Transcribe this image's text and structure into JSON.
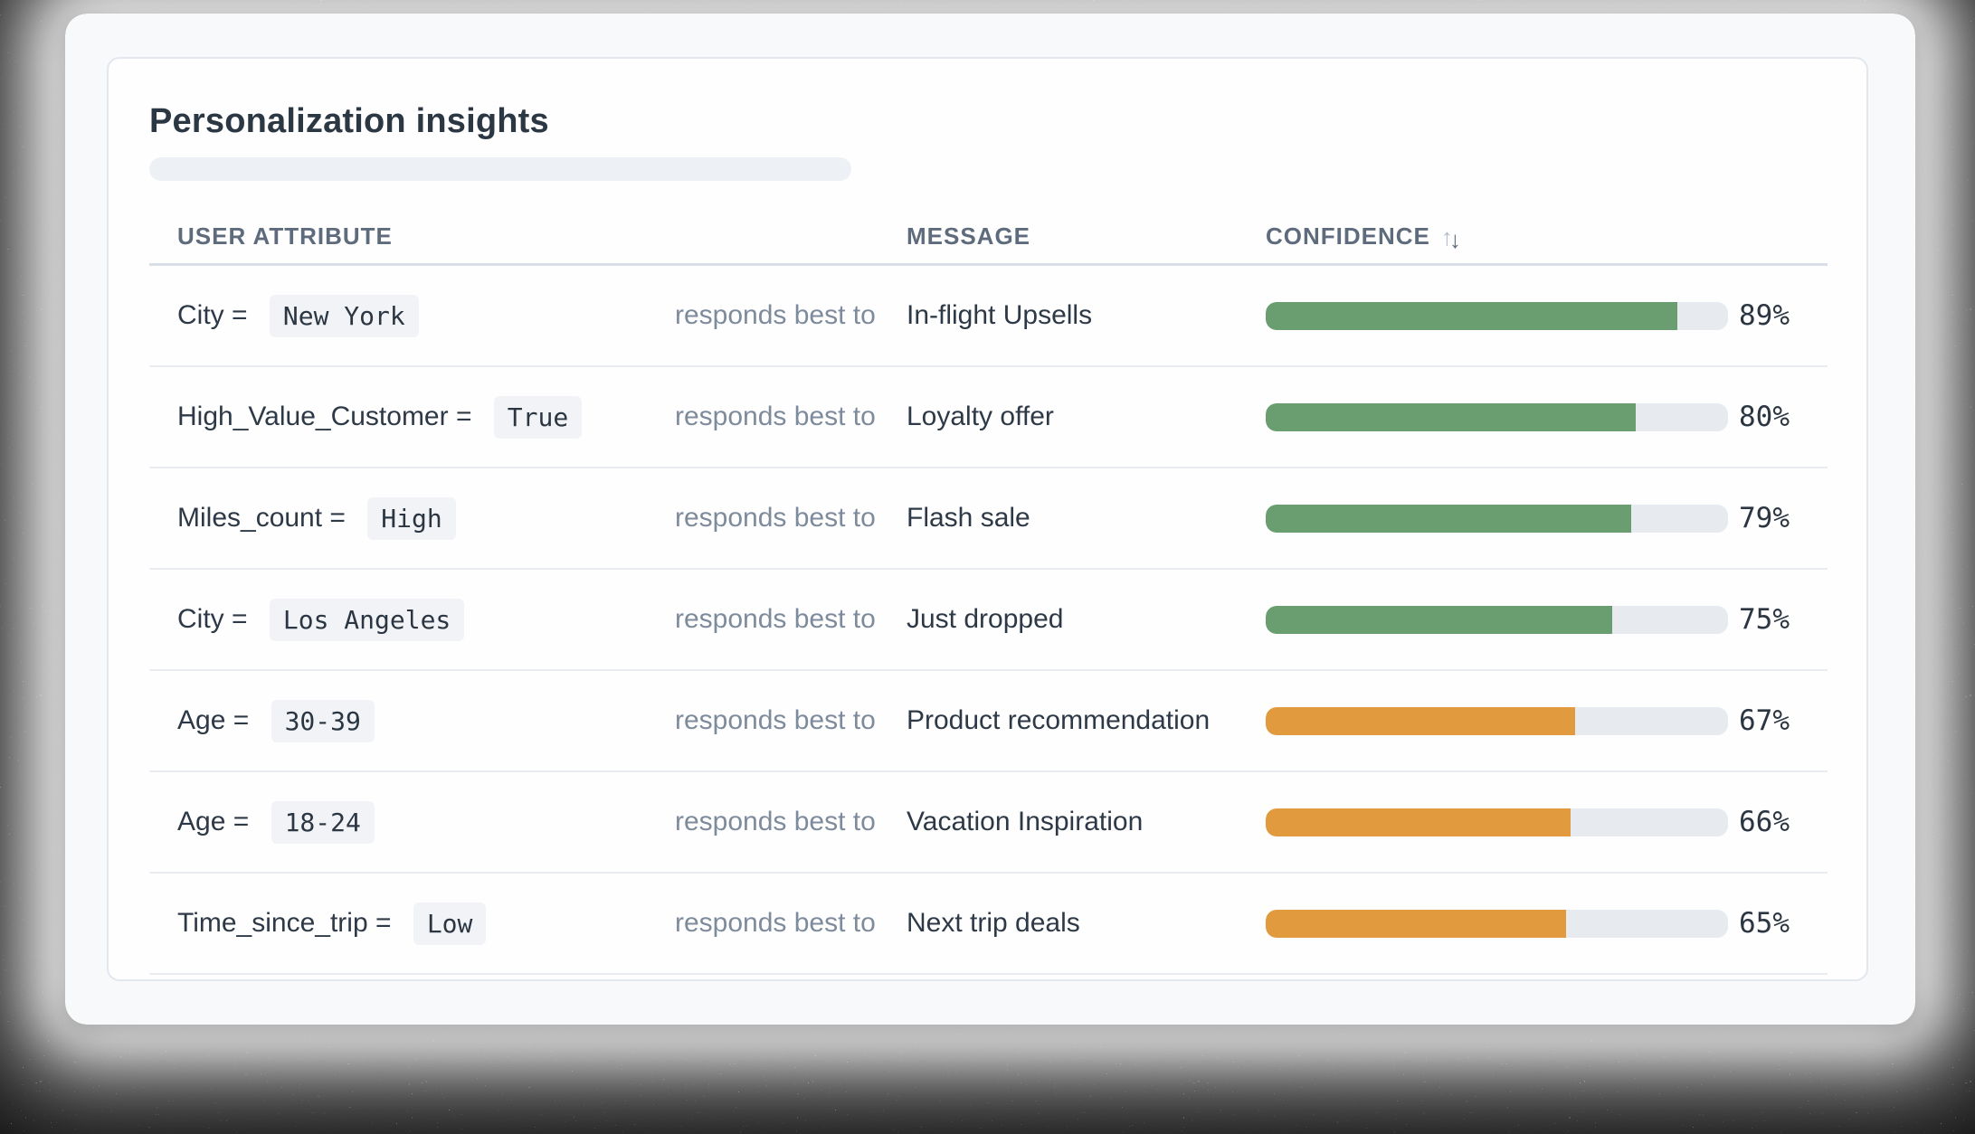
{
  "card": {
    "title": "Personalization insights"
  },
  "table": {
    "headers": {
      "attribute": "USER ATTRIBUTE",
      "message": "MESSAGE",
      "confidence": "CONFIDENCE"
    },
    "connector_label": "responds best to",
    "rows": [
      {
        "attribute_label": "City = ",
        "attribute_value": "New York",
        "message": "In-flight Upsells",
        "confidence_pct": 89,
        "confidence_label": "89%",
        "bar_color": "green"
      },
      {
        "attribute_label": "High_Value_Customer = ",
        "attribute_value": "True",
        "message": "Loyalty offer",
        "confidence_pct": 80,
        "confidence_label": "80%",
        "bar_color": "green"
      },
      {
        "attribute_label": "Miles_count = ",
        "attribute_value": "High",
        "message": "Flash sale",
        "confidence_pct": 79,
        "confidence_label": "79%",
        "bar_color": "green"
      },
      {
        "attribute_label": "City = ",
        "attribute_value": "Los Angeles",
        "message": "Just dropped",
        "confidence_pct": 75,
        "confidence_label": "75%",
        "bar_color": "green"
      },
      {
        "attribute_label": "Age = ",
        "attribute_value": "30-39",
        "message": "Product recommendation",
        "confidence_pct": 67,
        "confidence_label": "67%",
        "bar_color": "orange"
      },
      {
        "attribute_label": "Age = ",
        "attribute_value": "18-24",
        "message": "Vacation Inspiration",
        "confidence_pct": 66,
        "confidence_label": "66%",
        "bar_color": "orange"
      },
      {
        "attribute_label": "Time_since_trip = ",
        "attribute_value": "Low",
        "message": "Next trip deals",
        "confidence_pct": 65,
        "confidence_label": "65%",
        "bar_color": "orange"
      }
    ]
  },
  "icons": {
    "sort_up": "↑",
    "sort_down": "↓"
  },
  "colors": {
    "green": "#6a9e70",
    "orange": "#e29a3e",
    "track": "#e7ebef"
  }
}
